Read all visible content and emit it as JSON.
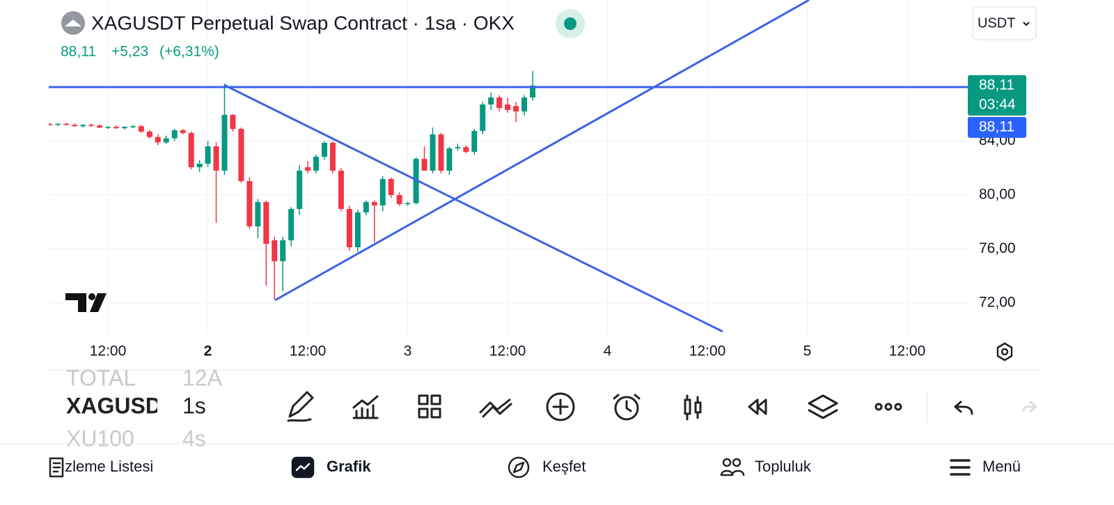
{
  "header": {
    "title": "XAGUSDT Perpetual Swap Contract · 1sa · OKX",
    "price": "88,11",
    "change": "+5,23",
    "change_pct": "(+6,31%)",
    "currency": "USDT"
  },
  "chart_data": {
    "type": "candlestick",
    "ylim": [
      69.68,
      94.45
    ],
    "yticks": [
      {
        "value": 72,
        "label": "72,00"
      },
      {
        "value": 76,
        "label": "76,00"
      },
      {
        "value": 80,
        "label": "80,00"
      },
      {
        "value": 84,
        "label": "84,00"
      }
    ],
    "xticks": [
      "12:00",
      "2",
      "12:00",
      "3",
      "12:00",
      "4",
      "12:00",
      "5",
      "12:00"
    ],
    "up_color": "#089981",
    "down_color": "#f23645",
    "grid": true,
    "last_price": {
      "value": 88.11,
      "label": "88,11",
      "countdown": "03:44"
    },
    "crosshair_price": {
      "value": 88.11,
      "label": "88,11"
    },
    "candles": [
      {
        "open": 85.25,
        "high": 85.35,
        "low": 85.15,
        "close": 85.2
      },
      {
        "open": 85.2,
        "high": 85.3,
        "low": 85.1,
        "close": 85.28
      },
      {
        "open": 85.28,
        "high": 85.35,
        "low": 85.15,
        "close": 85.2
      },
      {
        "open": 85.2,
        "high": 85.3,
        "low": 85.05,
        "close": 85.1
      },
      {
        "open": 85.1,
        "high": 85.25,
        "low": 85.0,
        "close": 85.2
      },
      {
        "open": 85.2,
        "high": 85.3,
        "low": 85.05,
        "close": 85.15
      },
      {
        "open": 85.15,
        "high": 85.25,
        "low": 84.95,
        "close": 85.0
      },
      {
        "open": 85.0,
        "high": 85.1,
        "low": 84.9,
        "close": 85.05
      },
      {
        "open": 85.05,
        "high": 85.15,
        "low": 84.9,
        "close": 84.95
      },
      {
        "open": 84.95,
        "high": 85.1,
        "low": 84.85,
        "close": 85.05
      },
      {
        "open": 85.05,
        "high": 85.2,
        "low": 84.95,
        "close": 85.1
      },
      {
        "open": 85.1,
        "high": 85.2,
        "low": 84.6,
        "close": 84.7
      },
      {
        "open": 84.7,
        "high": 84.8,
        "low": 84.2,
        "close": 84.3
      },
      {
        "open": 84.3,
        "high": 84.5,
        "low": 83.7,
        "close": 83.9
      },
      {
        "open": 83.9,
        "high": 84.4,
        "low": 83.8,
        "close": 84.2
      },
      {
        "open": 84.2,
        "high": 84.9,
        "low": 84.0,
        "close": 84.8
      },
      {
        "open": 84.8,
        "high": 84.9,
        "low": 84.5,
        "close": 84.6
      },
      {
        "open": 84.6,
        "high": 84.7,
        "low": 81.9,
        "close": 82.06
      },
      {
        "open": 82.06,
        "high": 82.6,
        "low": 81.7,
        "close": 82.32
      },
      {
        "open": 82.32,
        "high": 84.0,
        "low": 82.1,
        "close": 83.61
      },
      {
        "open": 83.61,
        "high": 83.9,
        "low": 77.94,
        "close": 81.81
      },
      {
        "open": 81.81,
        "high": 88.26,
        "low": 81.5,
        "close": 85.94
      },
      {
        "open": 85.94,
        "high": 86.0,
        "low": 84.7,
        "close": 84.9
      },
      {
        "open": 84.9,
        "high": 85.0,
        "low": 80.9,
        "close": 81.03
      },
      {
        "open": 81.03,
        "high": 81.3,
        "low": 77.5,
        "close": 77.68
      },
      {
        "open": 77.68,
        "high": 79.7,
        "low": 76.8,
        "close": 79.48
      },
      {
        "open": 79.48,
        "high": 79.6,
        "low": 73.29,
        "close": 76.39
      },
      {
        "open": 76.65,
        "high": 76.9,
        "low": 72.26,
        "close": 75.1
      },
      {
        "open": 75.1,
        "high": 76.9,
        "low": 72.9,
        "close": 76.65
      },
      {
        "open": 76.65,
        "high": 79.1,
        "low": 76.2,
        "close": 78.97
      },
      {
        "open": 78.97,
        "high": 82.2,
        "low": 78.5,
        "close": 81.81
      },
      {
        "open": 82.06,
        "high": 82.5,
        "low": 81.6,
        "close": 81.81
      },
      {
        "open": 81.81,
        "high": 83.0,
        "low": 81.6,
        "close": 82.84
      },
      {
        "open": 82.84,
        "high": 84.0,
        "low": 82.6,
        "close": 83.87
      },
      {
        "open": 83.87,
        "high": 84.0,
        "low": 81.6,
        "close": 81.81
      },
      {
        "open": 81.81,
        "high": 82.0,
        "low": 78.8,
        "close": 78.97
      },
      {
        "open": 78.97,
        "high": 79.2,
        "low": 75.9,
        "close": 76.13
      },
      {
        "open": 76.13,
        "high": 78.9,
        "low": 75.8,
        "close": 78.71
      },
      {
        "open": 78.71,
        "high": 79.6,
        "low": 78.5,
        "close": 79.48
      },
      {
        "open": 79.48,
        "high": 79.6,
        "low": 76.5,
        "close": 79.23
      },
      {
        "open": 79.23,
        "high": 81.4,
        "low": 78.8,
        "close": 81.19
      },
      {
        "open": 81.19,
        "high": 81.3,
        "low": 79.8,
        "close": 80.0
      },
      {
        "open": 80.0,
        "high": 80.2,
        "low": 79.2,
        "close": 79.33
      },
      {
        "open": 79.33,
        "high": 79.5,
        "low": 79.2,
        "close": 79.4
      },
      {
        "open": 79.4,
        "high": 82.8,
        "low": 79.3,
        "close": 82.68
      },
      {
        "open": 82.68,
        "high": 83.6,
        "low": 81.8,
        "close": 81.81
      },
      {
        "open": 81.81,
        "high": 85.0,
        "low": 81.6,
        "close": 84.49
      },
      {
        "open": 84.49,
        "high": 84.6,
        "low": 81.6,
        "close": 81.81
      },
      {
        "open": 81.81,
        "high": 83.6,
        "low": 81.5,
        "close": 83.46
      },
      {
        "open": 83.46,
        "high": 83.8,
        "low": 83.3,
        "close": 83.55
      },
      {
        "open": 83.55,
        "high": 83.7,
        "low": 83.1,
        "close": 83.2
      },
      {
        "open": 83.2,
        "high": 84.9,
        "low": 83.0,
        "close": 84.75
      },
      {
        "open": 84.75,
        "high": 86.9,
        "low": 84.5,
        "close": 86.71
      },
      {
        "open": 86.71,
        "high": 87.6,
        "low": 86.3,
        "close": 87.23
      },
      {
        "open": 87.23,
        "high": 87.4,
        "low": 86.2,
        "close": 86.45
      },
      {
        "open": 86.71,
        "high": 87.2,
        "low": 86.1,
        "close": 86.3
      },
      {
        "open": 86.6,
        "high": 86.9,
        "low": 85.4,
        "close": 86.19
      },
      {
        "open": 86.19,
        "high": 87.4,
        "low": 85.9,
        "close": 87.23
      },
      {
        "open": 87.23,
        "high": 89.19,
        "low": 87.0,
        "close": 88.11
      }
    ]
  },
  "watchlist": [
    {
      "symbol": "TOTAL",
      "interval": "12A"
    },
    {
      "symbol": "XAGUSD",
      "interval": "1s"
    },
    {
      "symbol": "XU100",
      "interval": "4s"
    }
  ],
  "nav": [
    "İzleme Listesi",
    "Grafik",
    "Keşfet",
    "Topluluk",
    "Menü"
  ]
}
